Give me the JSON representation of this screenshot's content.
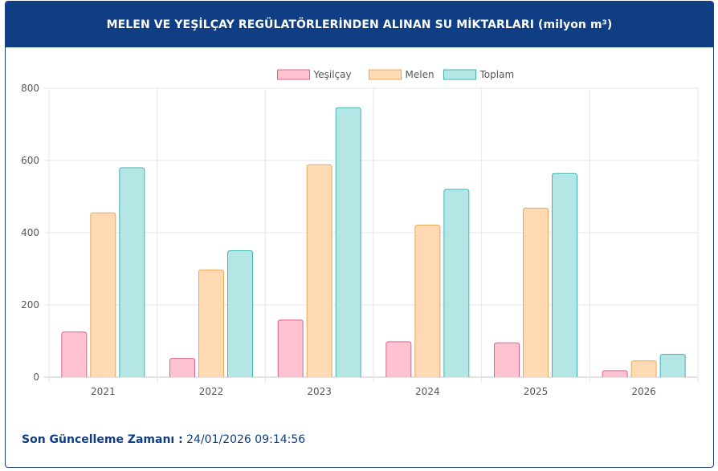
{
  "header": {
    "title": "MELEN VE YEŞİLÇAY REGÜLATÖRLERİNDEN ALINAN SU MİKTARLARI (milyon m³)"
  },
  "footer": {
    "label": "Son Güncelleme Zamanı :",
    "value": "24/01/2026 09:14:56"
  },
  "chart_data": {
    "type": "bar",
    "title": "MELEN VE YEŞİLÇAY REGÜLATÖRLERİNDEN ALINAN SU MİKTARLARI (milyon m³)",
    "categories": [
      "2021",
      "2022",
      "2023",
      "2024",
      "2025",
      "2026"
    ],
    "series": [
      {
        "name": "Yeşilçay",
        "values": [
          125,
          52,
          158,
          98,
          95,
          18
        ],
        "fill": "#ffc2d1",
        "stroke": "#e0608a"
      },
      {
        "name": "Melen",
        "values": [
          455,
          297,
          588,
          421,
          468,
          45
        ],
        "fill": "#fed9b1",
        "stroke": "#e8a85a"
      },
      {
        "name": "Toplam",
        "values": [
          580,
          350,
          746,
          520,
          564,
          63
        ],
        "fill": "#b5e6e6",
        "stroke": "#3fb3b3"
      }
    ],
    "ylim": [
      0,
      800
    ],
    "yticks": [
      0,
      200,
      400,
      600,
      800
    ],
    "grid": true,
    "legend": "top-center",
    "xlabel": "",
    "ylabel": ""
  }
}
